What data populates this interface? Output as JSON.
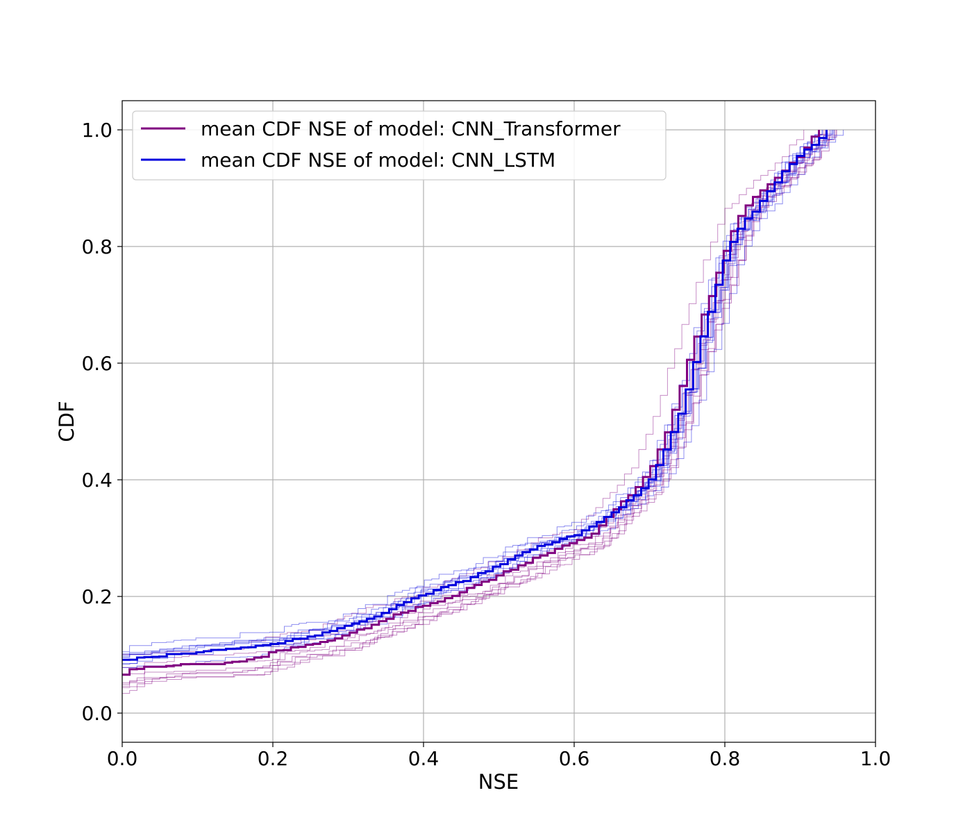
{
  "chart_data": {
    "type": "line",
    "title": "",
    "xlabel": "NSE",
    "ylabel": "CDF",
    "xlim": [
      0.0,
      1.0
    ],
    "ylim": [
      -0.05,
      1.05
    ],
    "x_ticks": [
      "0.0",
      "0.2",
      "0.4",
      "0.6",
      "0.8",
      "1.0"
    ],
    "y_ticks": [
      "0.0",
      "0.2",
      "0.4",
      "0.6",
      "0.8",
      "1.0"
    ],
    "grid": true,
    "legend_position": "top-left",
    "series": [
      {
        "name": "mean CDF NSE of model: CNN_Transformer",
        "color": "#800080",
        "points": [
          [
            0.0,
            0.065
          ],
          [
            0.01,
            0.075
          ],
          [
            0.06,
            0.082
          ],
          [
            0.12,
            0.082
          ],
          [
            0.17,
            0.092
          ],
          [
            0.2,
            0.105
          ],
          [
            0.25,
            0.118
          ],
          [
            0.3,
            0.135
          ],
          [
            0.33,
            0.152
          ],
          [
            0.37,
            0.172
          ],
          [
            0.4,
            0.185
          ],
          [
            0.43,
            0.198
          ],
          [
            0.46,
            0.215
          ],
          [
            0.5,
            0.238
          ],
          [
            0.54,
            0.262
          ],
          [
            0.58,
            0.285
          ],
          [
            0.62,
            0.305
          ],
          [
            0.65,
            0.345
          ],
          [
            0.68,
            0.385
          ],
          [
            0.7,
            0.42
          ],
          [
            0.72,
            0.48
          ],
          [
            0.74,
            0.56
          ],
          [
            0.76,
            0.65
          ],
          [
            0.78,
            0.72
          ],
          [
            0.8,
            0.8
          ],
          [
            0.82,
            0.86
          ],
          [
            0.84,
            0.89
          ],
          [
            0.86,
            0.91
          ],
          [
            0.88,
            0.935
          ],
          [
            0.9,
            0.96
          ],
          [
            0.91,
            0.98
          ],
          [
            0.925,
            1.0
          ]
        ]
      },
      {
        "name": "mean CDF NSE of model: CNN_LSTM",
        "color": "#0000dd",
        "points": [
          [
            0.0,
            0.09
          ],
          [
            0.04,
            0.097
          ],
          [
            0.1,
            0.105
          ],
          [
            0.15,
            0.112
          ],
          [
            0.2,
            0.118
          ],
          [
            0.23,
            0.128
          ],
          [
            0.27,
            0.138
          ],
          [
            0.3,
            0.152
          ],
          [
            0.34,
            0.168
          ],
          [
            0.37,
            0.188
          ],
          [
            0.4,
            0.205
          ],
          [
            0.44,
            0.222
          ],
          [
            0.48,
            0.242
          ],
          [
            0.52,
            0.268
          ],
          [
            0.56,
            0.29
          ],
          [
            0.6,
            0.305
          ],
          [
            0.64,
            0.335
          ],
          [
            0.67,
            0.365
          ],
          [
            0.7,
            0.4
          ],
          [
            0.72,
            0.455
          ],
          [
            0.74,
            0.52
          ],
          [
            0.76,
            0.61
          ],
          [
            0.78,
            0.7
          ],
          [
            0.8,
            0.79
          ],
          [
            0.82,
            0.84
          ],
          [
            0.84,
            0.865
          ],
          [
            0.86,
            0.9
          ],
          [
            0.88,
            0.935
          ],
          [
            0.9,
            0.96
          ],
          [
            0.92,
            0.98
          ],
          [
            0.935,
            1.0
          ]
        ]
      }
    ]
  }
}
